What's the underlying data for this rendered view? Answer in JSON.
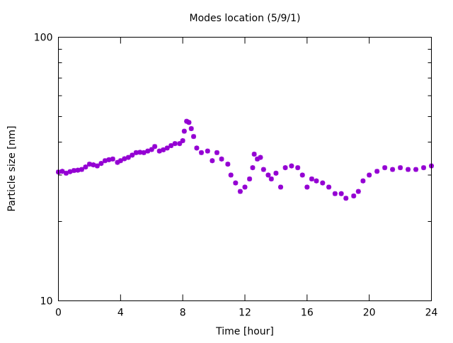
{
  "chart_data": {
    "type": "scatter",
    "title": "Modes location (5/9/1)",
    "xlabel": "Time [hour]",
    "ylabel": "Particle size [nm]",
    "xlim": [
      0,
      24
    ],
    "ylim": [
      10,
      100
    ],
    "yscale": "log",
    "xticks": [
      0,
      4,
      8,
      12,
      16,
      20,
      24
    ],
    "xtick_labels": [
      "0",
      "4",
      "8",
      "12",
      "16",
      "20",
      "24"
    ],
    "yticks": [
      10,
      100
    ],
    "ytick_labels": [
      "10",
      "100"
    ],
    "grid": false,
    "legend": "none",
    "marker_color": "#9400d3",
    "series": [
      {
        "name": "mode",
        "x": [
          0,
          0.25,
          0.5,
          0.75,
          1,
          1.25,
          1.5,
          1.75,
          2,
          2.25,
          2.5,
          2.75,
          3,
          3.25,
          3.5,
          3.8,
          4,
          4.25,
          4.5,
          4.75,
          5,
          5.25,
          5.5,
          5.75,
          6,
          6.2,
          6.5,
          6.75,
          7,
          7.25,
          7.5,
          7.8,
          8,
          8.1,
          8.25,
          8.4,
          8.55,
          8.7,
          8.9,
          9.2,
          9.6,
          9.9,
          10.2,
          10.5,
          10.9,
          11.1,
          11.4,
          11.7,
          12.0,
          12.3,
          12.5,
          12.6,
          12.8,
          13.0,
          13.2,
          13.5,
          13.7,
          14,
          14.3,
          14.6,
          15,
          15.4,
          15.7,
          16,
          16.3,
          16.6,
          17,
          17.4,
          17.8,
          18.2,
          18.5,
          19,
          19.3,
          19.6,
          20,
          20.5,
          21,
          21.5,
          22,
          22.5,
          23,
          23.5,
          24
        ],
        "values": [
          30.8,
          31.0,
          30.5,
          30.9,
          31.2,
          31.3,
          31.5,
          32.2,
          33,
          32.8,
          32.5,
          33.2,
          34,
          34.3,
          34.5,
          33.5,
          34,
          34.6,
          35,
          35.7,
          36.5,
          36.6,
          36.5,
          37,
          37.5,
          38.5,
          37,
          37.4,
          38,
          38.8,
          39.5,
          39.5,
          40.5,
          44,
          48,
          47.5,
          45,
          42,
          38,
          36.5,
          37,
          34,
          36.5,
          34.5,
          33,
          30,
          28,
          26,
          27,
          29,
          32,
          36,
          34.5,
          35,
          31.5,
          30,
          29,
          30.5,
          27,
          32,
          32.5,
          32,
          30,
          27,
          29,
          28.5,
          28,
          27,
          25.5,
          25.5,
          24.5,
          25,
          26,
          28.5,
          30,
          31,
          32,
          31.5,
          32,
          31.5,
          31.5,
          32,
          32.5
        ]
      }
    ]
  }
}
